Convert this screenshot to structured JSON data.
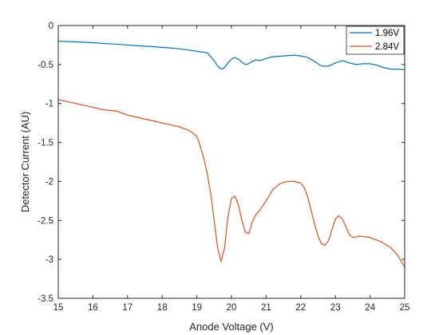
{
  "chart_data": {
    "type": "line",
    "title": "",
    "xlabel": "Anode Voltage (V)",
    "ylabel": "Detector Current (AU)",
    "xlim": [
      15,
      25
    ],
    "ylim": [
      -3.5,
      0
    ],
    "xticks": [
      15,
      16,
      17,
      18,
      19,
      20,
      21,
      22,
      23,
      24,
      25
    ],
    "yticks": [
      0,
      -0.5,
      -1,
      -1.5,
      -2,
      -2.5,
      -3,
      -3.5
    ],
    "xtick_labels": [
      "15",
      "16",
      "17",
      "18",
      "19",
      "20",
      "21",
      "22",
      "23",
      "24",
      "25"
    ],
    "ytick_labels": [
      "0",
      "-0.5",
      "-1",
      "-1.5",
      "-2",
      "-2.5",
      "-3",
      "-3.5"
    ],
    "grid": false,
    "legend_position": "top-right",
    "series": [
      {
        "name": "1.96V",
        "color": "#0072BD",
        "x": [
          15,
          15.5,
          16,
          16.3,
          16.7,
          17,
          17.3,
          17.7,
          18,
          18.3,
          18.7,
          19,
          19.3,
          19.5,
          19.6,
          19.7,
          19.8,
          19.9,
          20,
          20.1,
          20.2,
          20.3,
          20.4,
          20.5,
          20.6,
          20.7,
          20.8,
          20.9,
          21,
          21.2,
          21.5,
          21.8,
          22,
          22.2,
          22.4,
          22.6,
          22.8,
          23,
          23.2,
          23.4,
          23.6,
          23.8,
          24,
          24.2,
          24.4,
          24.6,
          24.8,
          25
        ],
        "y": [
          -0.2,
          -0.21,
          -0.22,
          -0.23,
          -0.24,
          -0.25,
          -0.26,
          -0.27,
          -0.28,
          -0.29,
          -0.31,
          -0.33,
          -0.35,
          -0.45,
          -0.52,
          -0.56,
          -0.54,
          -0.48,
          -0.43,
          -0.41,
          -0.43,
          -0.47,
          -0.5,
          -0.49,
          -0.46,
          -0.44,
          -0.45,
          -0.44,
          -0.42,
          -0.4,
          -0.39,
          -0.38,
          -0.39,
          -0.41,
          -0.46,
          -0.52,
          -0.52,
          -0.48,
          -0.45,
          -0.48,
          -0.5,
          -0.49,
          -0.49,
          -0.51,
          -0.54,
          -0.56,
          -0.56,
          -0.57
        ]
      },
      {
        "name": "2.84V",
        "color": "#D95319",
        "x": [
          15,
          15.5,
          16,
          16.3,
          16.7,
          17,
          17.5,
          18,
          18.5,
          18.8,
          19,
          19.1,
          19.2,
          19.3,
          19.4,
          19.5,
          19.6,
          19.7,
          19.8,
          19.9,
          20,
          20.1,
          20.2,
          20.3,
          20.4,
          20.5,
          20.6,
          20.7,
          20.8,
          21,
          21.2,
          21.4,
          21.6,
          21.8,
          22,
          22.1,
          22.2,
          22.3,
          22.4,
          22.5,
          22.6,
          22.7,
          22.8,
          22.9,
          23,
          23.1,
          23.2,
          23.3,
          23.4,
          23.5,
          23.7,
          24,
          24.3,
          24.6,
          24.8,
          25
        ],
        "y": [
          -0.95,
          -1.0,
          -1.05,
          -1.08,
          -1.1,
          -1.15,
          -1.2,
          -1.25,
          -1.3,
          -1.35,
          -1.42,
          -1.55,
          -1.7,
          -1.9,
          -2.15,
          -2.5,
          -2.85,
          -3.03,
          -2.85,
          -2.45,
          -2.22,
          -2.19,
          -2.3,
          -2.5,
          -2.65,
          -2.67,
          -2.52,
          -2.43,
          -2.38,
          -2.25,
          -2.1,
          -2.03,
          -2.0,
          -2.0,
          -2.02,
          -2.08,
          -2.2,
          -2.37,
          -2.55,
          -2.7,
          -2.8,
          -2.82,
          -2.76,
          -2.62,
          -2.48,
          -2.44,
          -2.48,
          -2.58,
          -2.68,
          -2.72,
          -2.7,
          -2.72,
          -2.77,
          -2.85,
          -2.95,
          -3.1
        ]
      }
    ]
  }
}
